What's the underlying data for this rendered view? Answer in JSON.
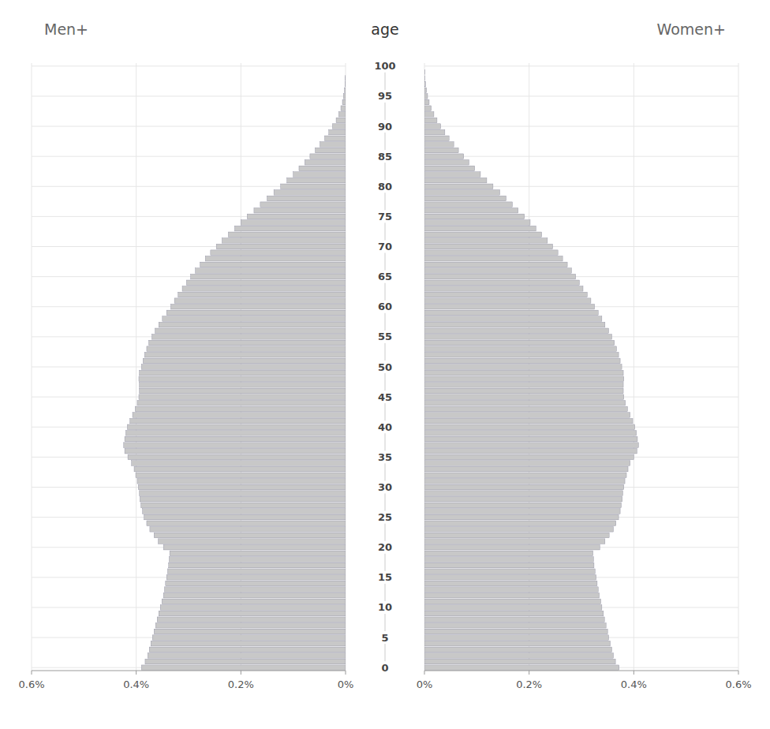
{
  "chart_data": {
    "type": "bar",
    "orientation": "horizontal",
    "ylabel": "age",
    "y": [
      0,
      1,
      2,
      3,
      4,
      5,
      6,
      7,
      8,
      9,
      10,
      11,
      12,
      13,
      14,
      15,
      16,
      17,
      18,
      19,
      20,
      21,
      22,
      23,
      24,
      25,
      26,
      27,
      28,
      29,
      30,
      31,
      32,
      33,
      34,
      35,
      36,
      37,
      38,
      39,
      40,
      41,
      42,
      43,
      44,
      45,
      46,
      47,
      48,
      49,
      50,
      51,
      52,
      53,
      54,
      55,
      56,
      57,
      58,
      59,
      60,
      61,
      62,
      63,
      64,
      65,
      66,
      67,
      68,
      69,
      70,
      71,
      72,
      73,
      74,
      75,
      76,
      77,
      78,
      79,
      80,
      81,
      82,
      83,
      84,
      85,
      86,
      87,
      88,
      89,
      90,
      91,
      92,
      93,
      94,
      95,
      96,
      97,
      98,
      99,
      100
    ],
    "series": [
      {
        "name": "Men+",
        "color": "#c8c8c8",
        "values": [
          0.39,
          0.383,
          0.378,
          0.375,
          0.372,
          0.369,
          0.366,
          0.363,
          0.36,
          0.357,
          0.354,
          0.351,
          0.348,
          0.346,
          0.344,
          0.342,
          0.34,
          0.338,
          0.337,
          0.336,
          0.348,
          0.358,
          0.366,
          0.374,
          0.38,
          0.385,
          0.388,
          0.391,
          0.393,
          0.394,
          0.396,
          0.398,
          0.401,
          0.404,
          0.409,
          0.416,
          0.422,
          0.424,
          0.422,
          0.42,
          0.417,
          0.412,
          0.407,
          0.402,
          0.398,
          0.395,
          0.394,
          0.394,
          0.395,
          0.394,
          0.39,
          0.387,
          0.384,
          0.38,
          0.376,
          0.37,
          0.364,
          0.357,
          0.35,
          0.342,
          0.334,
          0.327,
          0.32,
          0.312,
          0.304,
          0.296,
          0.287,
          0.278,
          0.268,
          0.258,
          0.247,
          0.236,
          0.224,
          0.212,
          0.2,
          0.188,
          0.175,
          0.163,
          0.15,
          0.137,
          0.124,
          0.112,
          0.1,
          0.089,
          0.078,
          0.068,
          0.058,
          0.049,
          0.04,
          0.032,
          0.025,
          0.018,
          0.013,
          0.009,
          0.006,
          0.004,
          0.002,
          0.001,
          0.001,
          0.0,
          0.0
        ]
      },
      {
        "name": "Women+",
        "color": "#c8c8c8",
        "values": [
          0.372,
          0.365,
          0.361,
          0.358,
          0.355,
          0.352,
          0.35,
          0.347,
          0.344,
          0.342,
          0.339,
          0.337,
          0.334,
          0.332,
          0.33,
          0.328,
          0.326,
          0.324,
          0.323,
          0.322,
          0.335,
          0.345,
          0.353,
          0.361,
          0.366,
          0.371,
          0.374,
          0.376,
          0.378,
          0.379,
          0.381,
          0.383,
          0.386,
          0.389,
          0.393,
          0.4,
          0.406,
          0.409,
          0.407,
          0.405,
          0.402,
          0.398,
          0.393,
          0.388,
          0.384,
          0.381,
          0.38,
          0.38,
          0.381,
          0.38,
          0.377,
          0.374,
          0.371,
          0.367,
          0.363,
          0.358,
          0.352,
          0.345,
          0.339,
          0.332,
          0.325,
          0.318,
          0.311,
          0.303,
          0.296,
          0.289,
          0.281,
          0.273,
          0.264,
          0.255,
          0.245,
          0.235,
          0.224,
          0.213,
          0.202,
          0.191,
          0.179,
          0.168,
          0.156,
          0.144,
          0.131,
          0.119,
          0.107,
          0.096,
          0.085,
          0.075,
          0.065,
          0.056,
          0.047,
          0.039,
          0.031,
          0.024,
          0.018,
          0.013,
          0.009,
          0.006,
          0.004,
          0.002,
          0.001,
          0.001,
          0.0
        ]
      }
    ],
    "xlim": [
      0,
      0.6
    ],
    "xticks": [
      {
        "value": 0.0,
        "label": "0%"
      },
      {
        "value": 0.2,
        "label": "0.2%"
      },
      {
        "value": 0.4,
        "label": "0.4%"
      },
      {
        "value": 0.6,
        "label": "0.6%"
      }
    ],
    "ylim": [
      -0.5,
      100.5
    ],
    "yticks": [
      0,
      5,
      10,
      15,
      20,
      25,
      30,
      35,
      40,
      45,
      50,
      55,
      60,
      65,
      70,
      75,
      80,
      85,
      90,
      95,
      100
    ],
    "grid": true
  }
}
